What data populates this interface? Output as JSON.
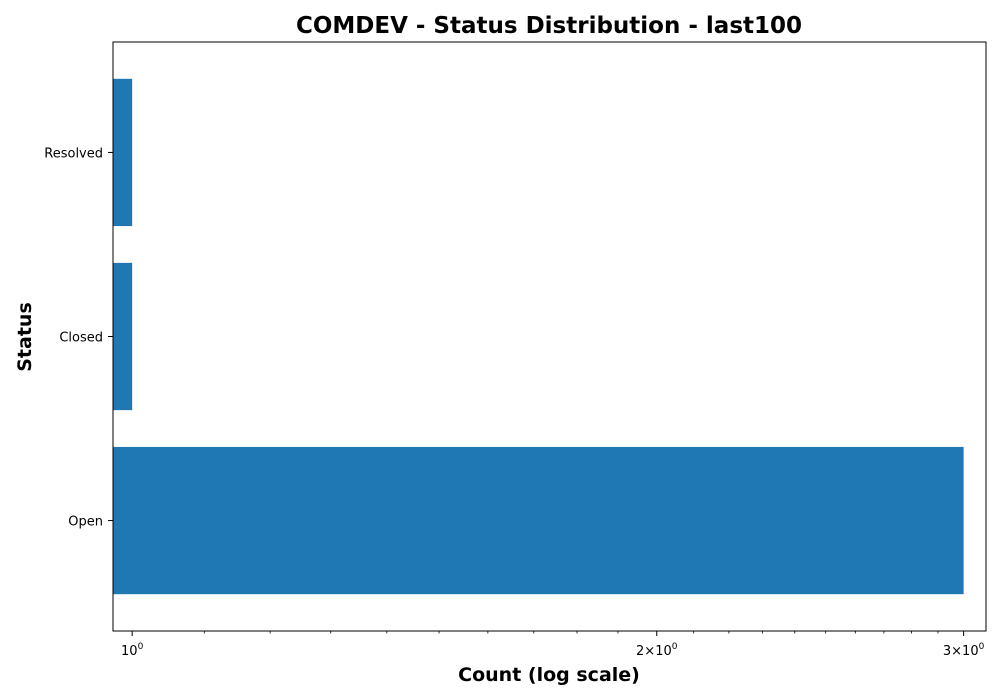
{
  "chart_data": {
    "type": "bar",
    "orientation": "horizontal",
    "title": "COMDEV - Status Distribution - last100",
    "xlabel": "Count (log scale)",
    "ylabel": "Status",
    "xscale": "log",
    "xlim": [
      0.975,
      3.09
    ],
    "categories": [
      "Open",
      "Closed",
      "Resolved"
    ],
    "values": [
      3,
      1,
      1
    ],
    "bar_color": "#1f77b4",
    "xticks": [
      {
        "value": 1,
        "base": "10",
        "exp": "0"
      },
      {
        "value": 2,
        "base": "2×10",
        "exp": "0"
      },
      {
        "value": 3,
        "base": "3×10",
        "exp": "0"
      }
    ],
    "grid": false,
    "legend": "none"
  }
}
